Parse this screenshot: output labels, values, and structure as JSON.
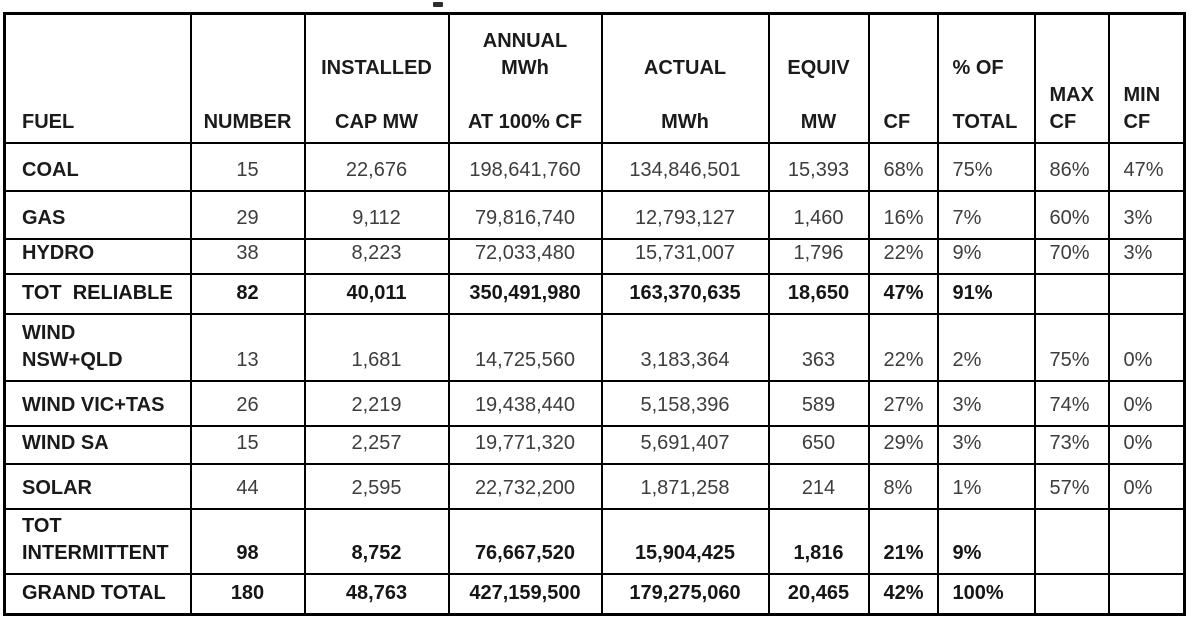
{
  "chart_data": {
    "type": "table",
    "columns": [
      "FUEL",
      "NUMBER",
      "INSTALLED CAP MW",
      "ANNUAL MWh AT 100% CF",
      "ACTUAL MWh",
      "EQUIV MW",
      "CF",
      "% OF TOTAL",
      "MAX CF",
      "MIN CF"
    ],
    "header_lines": [
      [
        "FUEL"
      ],
      [
        "NUMBER"
      ],
      [
        "INSTALLED",
        "",
        "CAP MW"
      ],
      [
        "ANNUAL",
        "MWh",
        "",
        "AT 100% CF"
      ],
      [
        "ACTUAL",
        "",
        "MWh"
      ],
      [
        "EQUIV",
        "",
        "MW"
      ],
      [
        "CF"
      ],
      [
        "% OF",
        "",
        "TOTAL"
      ],
      [
        "MAX",
        "CF"
      ],
      [
        "MIN",
        "CF"
      ]
    ],
    "rows": [
      {
        "fuel_lines": [
          "COAL"
        ],
        "bold": false,
        "values": [
          "15",
          "22,676",
          "198,641,760",
          "134,846,501",
          "15,393",
          "68%",
          "75%",
          "86%",
          "47%"
        ]
      },
      {
        "fuel_lines": [
          "GAS"
        ],
        "bold": false,
        "values": [
          "29",
          "9,112",
          "79,816,740",
          "12,793,127",
          "1,460",
          "16%",
          "7%",
          "60%",
          "3%"
        ]
      },
      {
        "fuel_lines": [
          "HYDRO"
        ],
        "bold": false,
        "values": [
          "38",
          "8,223",
          "72,033,480",
          "15,731,007",
          "1,796",
          "22%",
          "9%",
          "70%",
          "3%"
        ]
      },
      {
        "fuel_lines": [
          "TOT  RELIABLE"
        ],
        "bold": true,
        "values": [
          "82",
          "40,011",
          "350,491,980",
          "163,370,635",
          "18,650",
          "47%",
          "91%",
          "",
          ""
        ]
      },
      {
        "fuel_lines": [
          "WIND",
          "NSW+QLD"
        ],
        "bold": false,
        "values": [
          "13",
          "1,681",
          "14,725,560",
          "3,183,364",
          "363",
          "22%",
          "2%",
          "75%",
          "0%"
        ]
      },
      {
        "fuel_lines": [
          "WIND VIC+TAS"
        ],
        "bold": false,
        "values": [
          "26",
          "2,219",
          "19,438,440",
          "5,158,396",
          "589",
          "27%",
          "3%",
          "74%",
          "0%"
        ]
      },
      {
        "fuel_lines": [
          "WIND SA"
        ],
        "bold": false,
        "values": [
          "15",
          "2,257",
          "19,771,320",
          "5,691,407",
          "650",
          "29%",
          "3%",
          "73%",
          "0%"
        ]
      },
      {
        "fuel_lines": [
          "SOLAR"
        ],
        "bold": false,
        "values": [
          "44",
          "2,595",
          "22,732,200",
          "1,871,258",
          "214",
          "8%",
          "1%",
          "57%",
          "0%"
        ]
      },
      {
        "fuel_lines": [
          "TOT",
          "INTERMITTENT"
        ],
        "bold": true,
        "values": [
          "98",
          "8,752",
          "76,667,520",
          "15,904,425",
          "1,816",
          "21%",
          "9%",
          "",
          ""
        ]
      },
      {
        "fuel_lines": [
          "GRAND TOTAL"
        ],
        "bold": true,
        "values": [
          "180",
          "48,763",
          "427,159,500",
          "179,275,060",
          "20,465",
          "42%",
          "100%",
          "",
          ""
        ]
      }
    ]
  }
}
